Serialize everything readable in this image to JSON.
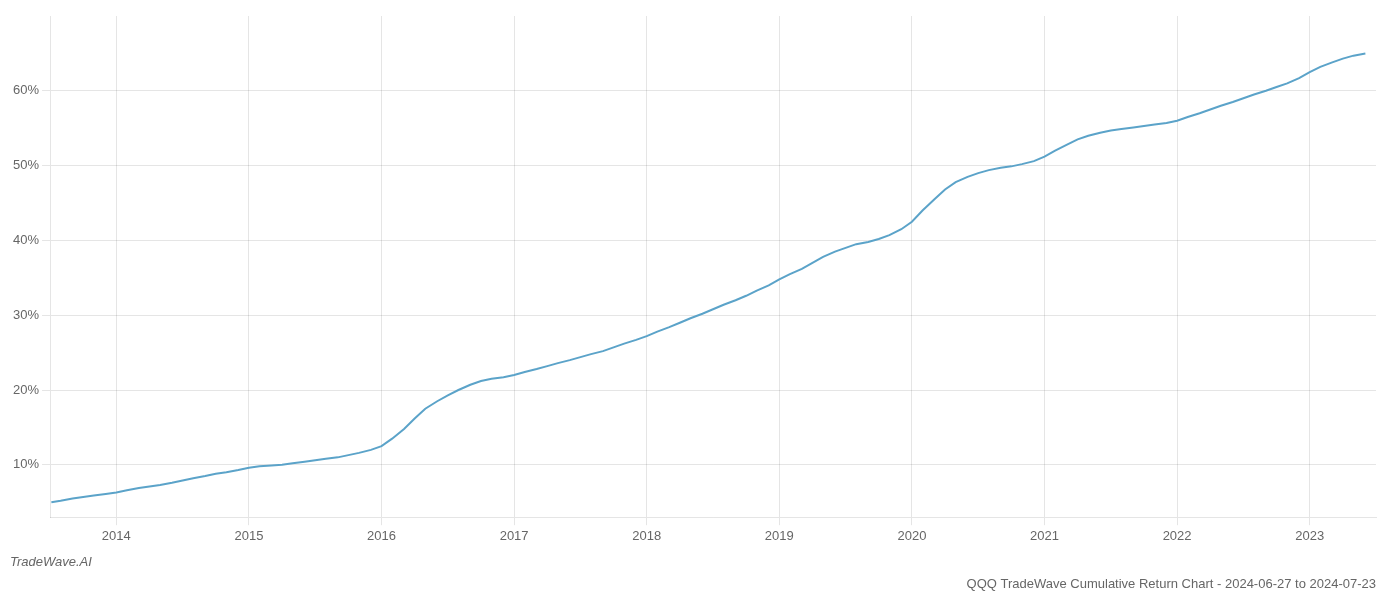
{
  "chart_data": {
    "type": "line",
    "title": "QQQ TradeWave Cumulative Return Chart - 2024-06-27 to 2024-07-23",
    "annotations": [
      "TradeWave.AI"
    ],
    "x": [
      2013.51,
      2013.58,
      2013.67,
      2013.75,
      2013.83,
      2013.92,
      2014.0,
      2014.08,
      2014.17,
      2014.25,
      2014.33,
      2014.42,
      2014.5,
      2014.58,
      2014.67,
      2014.75,
      2014.83,
      2014.92,
      2015.0,
      2015.08,
      2015.17,
      2015.25,
      2015.33,
      2015.42,
      2015.5,
      2015.58,
      2015.67,
      2015.75,
      2015.83,
      2015.92,
      2016.0,
      2016.08,
      2016.17,
      2016.25,
      2016.33,
      2016.42,
      2016.5,
      2016.58,
      2016.67,
      2016.75,
      2016.83,
      2016.92,
      2017.0,
      2017.08,
      2017.17,
      2017.25,
      2017.33,
      2017.42,
      2017.5,
      2017.58,
      2017.67,
      2017.75,
      2017.83,
      2017.92,
      2018.0,
      2018.08,
      2018.17,
      2018.25,
      2018.33,
      2018.42,
      2018.5,
      2018.58,
      2018.67,
      2018.75,
      2018.83,
      2018.92,
      2019.0,
      2019.08,
      2019.17,
      2019.25,
      2019.33,
      2019.42,
      2019.5,
      2019.58,
      2019.67,
      2019.75,
      2019.83,
      2019.92,
      2020.0,
      2020.08,
      2020.17,
      2020.25,
      2020.33,
      2020.42,
      2020.5,
      2020.58,
      2020.67,
      2020.75,
      2020.83,
      2020.92,
      2021.0,
      2021.08,
      2021.17,
      2021.25,
      2021.33,
      2021.42,
      2021.5,
      2021.58,
      2021.67,
      2021.75,
      2021.83,
      2021.92,
      2022.0,
      2022.08,
      2022.17,
      2022.25,
      2022.33,
      2022.42,
      2022.5,
      2022.58,
      2022.67,
      2022.75,
      2022.83,
      2022.92,
      2023.0,
      2023.08,
      2023.17,
      2023.25,
      2023.33,
      2023.42
    ],
    "values": [
      5.0,
      5.2,
      5.5,
      5.7,
      5.9,
      6.1,
      6.3,
      6.6,
      6.9,
      7.1,
      7.3,
      7.6,
      7.9,
      8.2,
      8.5,
      8.8,
      9.0,
      9.3,
      9.6,
      9.8,
      9.9,
      10.0,
      10.2,
      10.4,
      10.6,
      10.8,
      11.0,
      11.3,
      11.6,
      12.0,
      12.5,
      13.5,
      14.8,
      16.2,
      17.5,
      18.5,
      19.3,
      20.0,
      20.7,
      21.2,
      21.5,
      21.7,
      22.0,
      22.4,
      22.8,
      23.2,
      23.6,
      24.0,
      24.4,
      24.8,
      25.2,
      25.7,
      26.2,
      26.7,
      27.2,
      27.8,
      28.4,
      29.0,
      29.6,
      30.2,
      30.8,
      31.4,
      32.0,
      32.6,
      33.3,
      34.0,
      34.8,
      35.5,
      36.2,
      37.0,
      37.8,
      38.5,
      39.0,
      39.5,
      39.8,
      40.2,
      40.7,
      41.5,
      42.5,
      44.0,
      45.5,
      46.8,
      47.8,
      48.5,
      49.0,
      49.4,
      49.7,
      49.9,
      50.2,
      50.6,
      51.2,
      52.0,
      52.8,
      53.5,
      54.0,
      54.4,
      54.7,
      54.9,
      55.1,
      55.3,
      55.5,
      55.7,
      56.0,
      56.5,
      57.0,
      57.5,
      58.0,
      58.5,
      59.0,
      59.5,
      60.0,
      60.5,
      61.0,
      61.7,
      62.5,
      63.2,
      63.8,
      64.3,
      64.7,
      65.0
    ],
    "color": "#5ba3c9",
    "xlim": [
      2013.5,
      2023.5
    ],
    "xticks": [
      2014,
      2015,
      2016,
      2017,
      2018,
      2019,
      2020,
      2021,
      2022,
      2023
    ],
    "ylim": [
      3,
      70
    ],
    "yticks": [
      {
        "value": 10,
        "label": "10%"
      },
      {
        "value": 20,
        "label": "20%"
      },
      {
        "value": 30,
        "label": "30%"
      },
      {
        "value": 40,
        "label": "40%"
      },
      {
        "value": 50,
        "label": "50%"
      },
      {
        "value": 60,
        "label": "60%"
      }
    ],
    "grid": true
  }
}
